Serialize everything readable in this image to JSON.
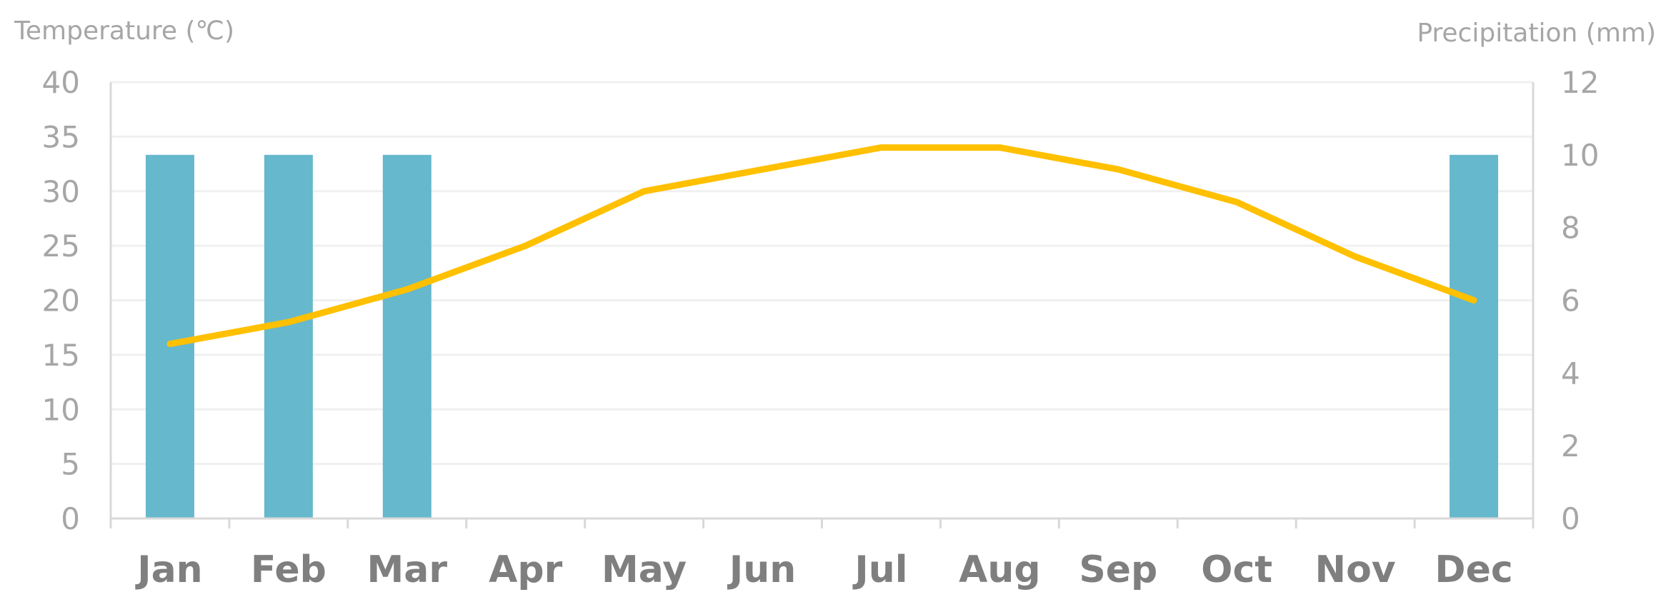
{
  "chart_data": {
    "type": "bar",
    "categories": [
      "Jan",
      "Feb",
      "Mar",
      "Apr",
      "May",
      "Jun",
      "Jul",
      "Aug",
      "Sep",
      "Oct",
      "Nov",
      "Dec"
    ],
    "series": [
      {
        "name": "Precipitation",
        "type": "bar",
        "axis": "right",
        "values": [
          10,
          10,
          10,
          0,
          0,
          0,
          0,
          0,
          0,
          0,
          0,
          10
        ],
        "color": "#66b8cc"
      },
      {
        "name": "Temperature",
        "type": "line",
        "axis": "left",
        "values": [
          16,
          18,
          21,
          25,
          30,
          32,
          34,
          34,
          32,
          29,
          24,
          20
        ],
        "color": "#ffc000"
      }
    ],
    "ylabel_left": "Temperature (℃)",
    "ylabel_right": "Precipitation (mm)",
    "ylim_left": [
      0,
      40
    ],
    "yticks_left": [
      "0",
      "5",
      "10",
      "15",
      "20",
      "25",
      "30",
      "35",
      "40"
    ],
    "ylim_right": [
      0,
      12
    ],
    "yticks_right": [
      "0",
      "2",
      "4",
      "6",
      "8",
      "10",
      "12"
    ],
    "grid": true,
    "legend": "none"
  }
}
